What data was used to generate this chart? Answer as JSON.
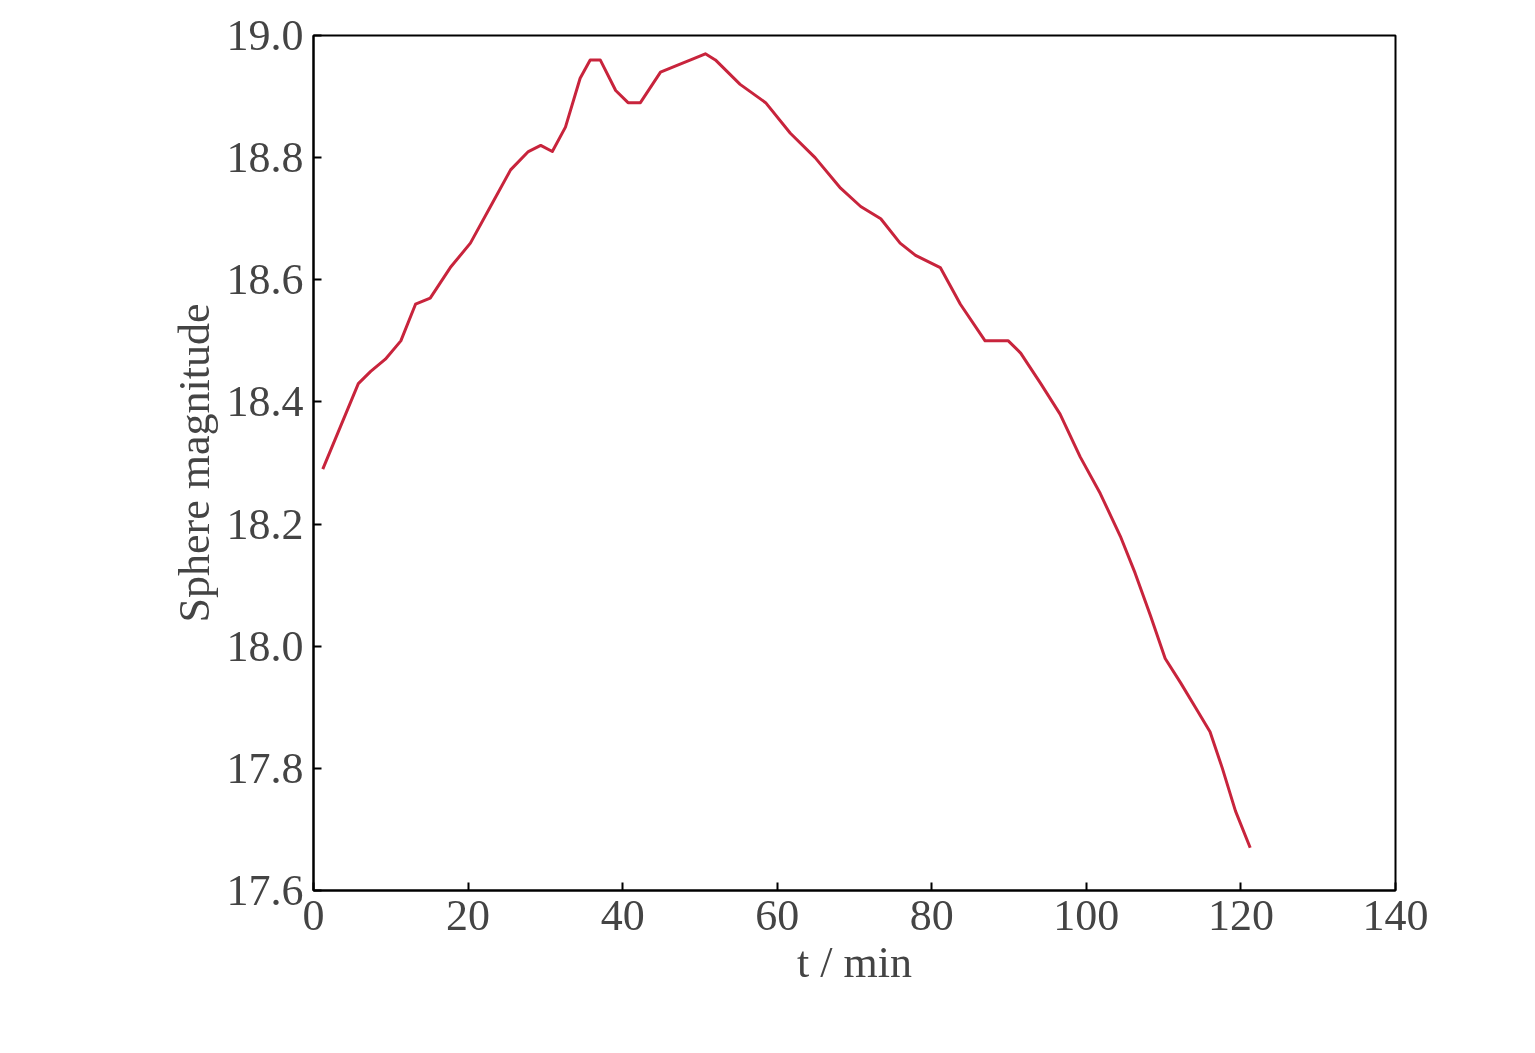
{
  "chart_data": {
    "type": "line",
    "xlabel": "t / min",
    "ylabel": "Sphere magnitude",
    "xlim": [
      0,
      140
    ],
    "ylim": [
      17.6,
      19.0
    ],
    "xticks": [
      0,
      20,
      40,
      60,
      80,
      100,
      120,
      140
    ],
    "yticks": [
      {
        "value": 17.6,
        "label": "17.6"
      },
      {
        "value": 17.8,
        "label": "17.8"
      },
      {
        "value": 18.0,
        "label": "18.0"
      },
      {
        "value": 18.2,
        "label": "18.2"
      },
      {
        "value": 18.4,
        "label": "18.4"
      },
      {
        "value": 18.6,
        "label": "18.6"
      },
      {
        "value": 18.8,
        "label": "18.8"
      },
      {
        "value": 19.0,
        "label": "19.0"
      }
    ],
    "grid": false,
    "marker": "none",
    "line_style": "solid",
    "series": [
      {
        "color": "#c8243c",
        "x": [
          1.2,
          3.5,
          5.8,
          7.4,
          9.3,
          11.3,
          13.2,
          15.1,
          17.7,
          20.3,
          22.9,
          25.5,
          27.8,
          29.4,
          30.9,
          32.6,
          34.5,
          35.8,
          37.1,
          39.1,
          40.7,
          42.3,
          44.9,
          46.8,
          48.8,
          50.7,
          52,
          55.2,
          58.5,
          61.7,
          64.9,
          68.2,
          70.8,
          73.4,
          75.9,
          77.9,
          81.1,
          83.7,
          86.9,
          89.9,
          91.5,
          94.1,
          96.6,
          99.2,
          101.8,
          104.4,
          106.3,
          108.3,
          110.2,
          112.2,
          114.1,
          116.0,
          117.6,
          119.3,
          121.2
        ],
        "values": [
          18.29,
          18.36,
          18.43,
          18.45,
          18.47,
          18.5,
          18.56,
          18.57,
          18.62,
          18.66,
          18.72,
          18.78,
          18.81,
          18.82,
          18.81,
          18.85,
          18.93,
          18.96,
          18.96,
          18.91,
          18.89,
          18.89,
          18.94,
          18.95,
          18.96,
          18.97,
          18.96,
          18.92,
          18.89,
          18.84,
          18.8,
          18.75,
          18.72,
          18.7,
          18.66,
          18.64,
          18.62,
          18.56,
          18.5,
          18.5,
          18.48,
          18.43,
          18.38,
          18.31,
          18.25,
          18.18,
          18.12,
          18.05,
          17.98,
          17.94,
          17.9,
          17.86,
          17.8,
          17.73,
          17.67
        ]
      }
    ]
  }
}
